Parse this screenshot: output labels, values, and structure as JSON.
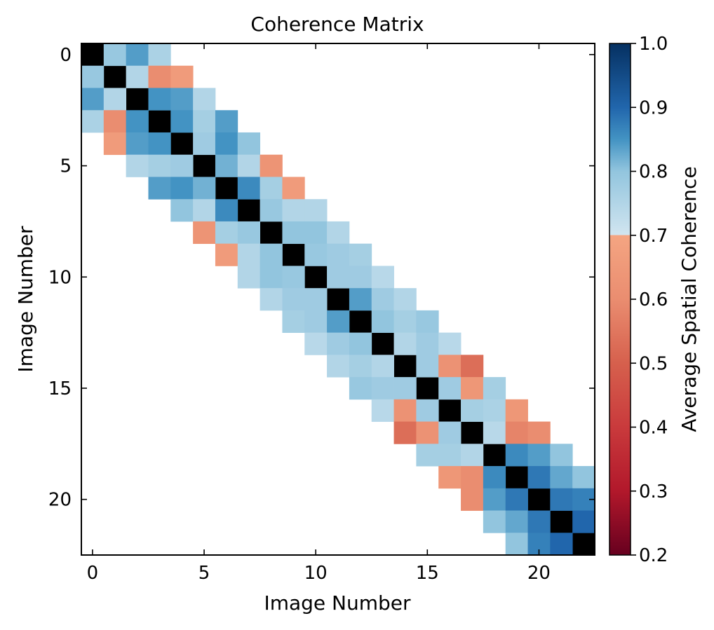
{
  "chart_data": {
    "type": "heatmap",
    "title": "Coherence Matrix",
    "xlabel": "Image Number",
    "ylabel": "Image Number",
    "n": 23,
    "x_ticks": [
      0,
      5,
      10,
      15,
      20
    ],
    "y_ticks": [
      0,
      5,
      10,
      15,
      20
    ],
    "colorbar": {
      "label": "Average Spatial Coherence",
      "vmin": 0.2,
      "vmax": 1.0,
      "ticks": [
        0.2,
        0.3,
        0.4,
        0.5,
        0.6,
        0.7,
        0.8,
        0.9,
        1.0
      ],
      "tick_labels": [
        "0.2",
        "0.3",
        "0.4",
        "0.5",
        "0.6",
        "0.7",
        "0.8",
        "0.9",
        "1.0"
      ],
      "colormap": "RdBu",
      "colormap_stops": [
        {
          "v": 0.2,
          "color": "#67001f"
        },
        {
          "v": 0.3,
          "color": "#b2182b"
        },
        {
          "v": 0.4,
          "color": "#c93a3c"
        },
        {
          "v": 0.5,
          "color": "#d6604d"
        },
        {
          "v": 0.6,
          "color": "#ea8d70"
        },
        {
          "v": 0.7,
          "color": "#f4a582"
        },
        {
          "v": 0.7001,
          "color": "#d1e5f0"
        },
        {
          "v": 0.8,
          "color": "#92c5de"
        },
        {
          "v": 0.85,
          "color": "#4393c3"
        },
        {
          "v": 0.9,
          "color": "#2166ac"
        },
        {
          "v": 1.0,
          "color": "#053061"
        }
      ],
      "diagonal_color": "#000000"
    },
    "cells": [
      {
        "row": 0,
        "col": 1,
        "value": 0.79
      },
      {
        "row": 0,
        "col": 2,
        "value": 0.84
      },
      {
        "row": 0,
        "col": 3,
        "value": 0.76
      },
      {
        "row": 1,
        "col": 0,
        "value": 0.79
      },
      {
        "row": 1,
        "col": 2,
        "value": 0.75
      },
      {
        "row": 1,
        "col": 3,
        "value": 0.6
      },
      {
        "row": 1,
        "col": 4,
        "value": 0.66
      },
      {
        "row": 2,
        "col": 0,
        "value": 0.84
      },
      {
        "row": 2,
        "col": 1,
        "value": 0.75
      },
      {
        "row": 2,
        "col": 3,
        "value": 0.85
      },
      {
        "row": 2,
        "col": 4,
        "value": 0.84
      },
      {
        "row": 2,
        "col": 5,
        "value": 0.75
      },
      {
        "row": 3,
        "col": 0,
        "value": 0.76
      },
      {
        "row": 3,
        "col": 1,
        "value": 0.6
      },
      {
        "row": 3,
        "col": 2,
        "value": 0.85
      },
      {
        "row": 3,
        "col": 4,
        "value": 0.85
      },
      {
        "row": 3,
        "col": 5,
        "value": 0.77
      },
      {
        "row": 3,
        "col": 6,
        "value": 0.84
      },
      {
        "row": 4,
        "col": 1,
        "value": 0.66
      },
      {
        "row": 4,
        "col": 2,
        "value": 0.84
      },
      {
        "row": 4,
        "col": 3,
        "value": 0.85
      },
      {
        "row": 4,
        "col": 5,
        "value": 0.78
      },
      {
        "row": 4,
        "col": 6,
        "value": 0.85
      },
      {
        "row": 4,
        "col": 7,
        "value": 0.8
      },
      {
        "row": 5,
        "col": 2,
        "value": 0.75
      },
      {
        "row": 5,
        "col": 3,
        "value": 0.77
      },
      {
        "row": 5,
        "col": 4,
        "value": 0.78
      },
      {
        "row": 5,
        "col": 6,
        "value": 0.82
      },
      {
        "row": 5,
        "col": 7,
        "value": 0.75
      },
      {
        "row": 5,
        "col": 8,
        "value": 0.63
      },
      {
        "row": 6,
        "col": 3,
        "value": 0.84
      },
      {
        "row": 6,
        "col": 4,
        "value": 0.85
      },
      {
        "row": 6,
        "col": 5,
        "value": 0.82
      },
      {
        "row": 6,
        "col": 7,
        "value": 0.86
      },
      {
        "row": 6,
        "col": 8,
        "value": 0.77
      },
      {
        "row": 6,
        "col": 9,
        "value": 0.66
      },
      {
        "row": 7,
        "col": 4,
        "value": 0.8
      },
      {
        "row": 7,
        "col": 5,
        "value": 0.75
      },
      {
        "row": 7,
        "col": 6,
        "value": 0.86
      },
      {
        "row": 7,
        "col": 8,
        "value": 0.79
      },
      {
        "row": 7,
        "col": 9,
        "value": 0.75
      },
      {
        "row": 7,
        "col": 10,
        "value": 0.75
      },
      {
        "row": 8,
        "col": 5,
        "value": 0.63
      },
      {
        "row": 8,
        "col": 6,
        "value": 0.77
      },
      {
        "row": 8,
        "col": 7,
        "value": 0.79
      },
      {
        "row": 8,
        "col": 9,
        "value": 0.8
      },
      {
        "row": 8,
        "col": 10,
        "value": 0.8
      },
      {
        "row": 8,
        "col": 11,
        "value": 0.75
      },
      {
        "row": 9,
        "col": 6,
        "value": 0.66
      },
      {
        "row": 9,
        "col": 7,
        "value": 0.75
      },
      {
        "row": 9,
        "col": 8,
        "value": 0.8
      },
      {
        "row": 9,
        "col": 10,
        "value": 0.79
      },
      {
        "row": 9,
        "col": 11,
        "value": 0.78
      },
      {
        "row": 9,
        "col": 12,
        "value": 0.77
      },
      {
        "row": 10,
        "col": 7,
        "value": 0.75
      },
      {
        "row": 10,
        "col": 8,
        "value": 0.8
      },
      {
        "row": 10,
        "col": 9,
        "value": 0.79
      },
      {
        "row": 10,
        "col": 11,
        "value": 0.78
      },
      {
        "row": 10,
        "col": 12,
        "value": 0.78
      },
      {
        "row": 10,
        "col": 13,
        "value": 0.74
      },
      {
        "row": 11,
        "col": 8,
        "value": 0.75
      },
      {
        "row": 11,
        "col": 9,
        "value": 0.78
      },
      {
        "row": 11,
        "col": 10,
        "value": 0.78
      },
      {
        "row": 11,
        "col": 12,
        "value": 0.84
      },
      {
        "row": 11,
        "col": 13,
        "value": 0.78
      },
      {
        "row": 11,
        "col": 14,
        "value": 0.75
      },
      {
        "row": 12,
        "col": 9,
        "value": 0.77
      },
      {
        "row": 12,
        "col": 10,
        "value": 0.78
      },
      {
        "row": 12,
        "col": 11,
        "value": 0.84
      },
      {
        "row": 12,
        "col": 13,
        "value": 0.8
      },
      {
        "row": 12,
        "col": 14,
        "value": 0.77
      },
      {
        "row": 12,
        "col": 15,
        "value": 0.79
      },
      {
        "row": 13,
        "col": 10,
        "value": 0.74
      },
      {
        "row": 13,
        "col": 11,
        "value": 0.78
      },
      {
        "row": 13,
        "col": 12,
        "value": 0.8
      },
      {
        "row": 13,
        "col": 14,
        "value": 0.75
      },
      {
        "row": 13,
        "col": 15,
        "value": 0.78
      },
      {
        "row": 13,
        "col": 16,
        "value": 0.74
      },
      {
        "row": 14,
        "col": 11,
        "value": 0.75
      },
      {
        "row": 14,
        "col": 12,
        "value": 0.77
      },
      {
        "row": 14,
        "col": 13,
        "value": 0.75
      },
      {
        "row": 14,
        "col": 15,
        "value": 0.78
      },
      {
        "row": 14,
        "col": 16,
        "value": 0.62
      },
      {
        "row": 14,
        "col": 17,
        "value": 0.53
      },
      {
        "row": 15,
        "col": 12,
        "value": 0.79
      },
      {
        "row": 15,
        "col": 13,
        "value": 0.78
      },
      {
        "row": 15,
        "col": 14,
        "value": 0.78
      },
      {
        "row": 15,
        "col": 16,
        "value": 0.78
      },
      {
        "row": 15,
        "col": 17,
        "value": 0.64
      },
      {
        "row": 15,
        "col": 18,
        "value": 0.77
      },
      {
        "row": 16,
        "col": 13,
        "value": 0.74
      },
      {
        "row": 16,
        "col": 14,
        "value": 0.62
      },
      {
        "row": 16,
        "col": 15,
        "value": 0.78
      },
      {
        "row": 16,
        "col": 17,
        "value": 0.77
      },
      {
        "row": 16,
        "col": 18,
        "value": 0.76
      },
      {
        "row": 16,
        "col": 19,
        "value": 0.64
      },
      {
        "row": 17,
        "col": 14,
        "value": 0.53
      },
      {
        "row": 17,
        "col": 15,
        "value": 0.62
      },
      {
        "row": 17,
        "col": 16,
        "value": 0.78
      },
      {
        "row": 17,
        "col": 18,
        "value": 0.74
      },
      {
        "row": 17,
        "col": 19,
        "value": 0.58
      },
      {
        "row": 17,
        "col": 20,
        "value": 0.6
      },
      {
        "row": 18,
        "col": 15,
        "value": 0.77
      },
      {
        "row": 18,
        "col": 16,
        "value": 0.77
      },
      {
        "row": 18,
        "col": 17,
        "value": 0.75
      },
      {
        "row": 18,
        "col": 19,
        "value": 0.86
      },
      {
        "row": 18,
        "col": 20,
        "value": 0.84
      },
      {
        "row": 18,
        "col": 21,
        "value": 0.8
      },
      {
        "row": 19,
        "col": 16,
        "value": 0.64
      },
      {
        "row": 19,
        "col": 17,
        "value": 0.6
      },
      {
        "row": 19,
        "col": 18,
        "value": 0.86
      },
      {
        "row": 19,
        "col": 20,
        "value": 0.88
      },
      {
        "row": 19,
        "col": 21,
        "value": 0.83
      },
      {
        "row": 19,
        "col": 22,
        "value": 0.8
      },
      {
        "row": 20,
        "col": 17,
        "value": 0.6
      },
      {
        "row": 20,
        "col": 18,
        "value": 0.84
      },
      {
        "row": 20,
        "col": 19,
        "value": 0.88
      },
      {
        "row": 20,
        "col": 21,
        "value": 0.88
      },
      {
        "row": 20,
        "col": 22,
        "value": 0.87
      },
      {
        "row": 21,
        "col": 18,
        "value": 0.8
      },
      {
        "row": 21,
        "col": 19,
        "value": 0.83
      },
      {
        "row": 21,
        "col": 20,
        "value": 0.88
      },
      {
        "row": 21,
        "col": 22,
        "value": 0.9
      },
      {
        "row": 22,
        "col": 19,
        "value": 0.8
      },
      {
        "row": 22,
        "col": 20,
        "value": 0.87
      },
      {
        "row": 22,
        "col": 21,
        "value": 0.9
      }
    ]
  }
}
